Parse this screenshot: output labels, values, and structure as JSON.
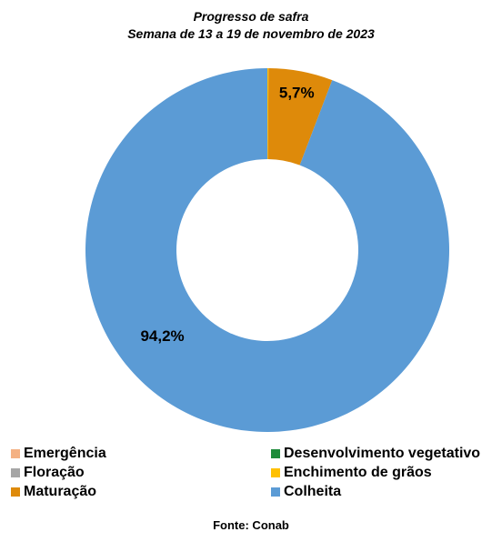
{
  "chart_data": {
    "type": "pie",
    "style": "donut",
    "title": "Progresso de safra",
    "subtitle": "Semana de 13 a 19 de novembro de 2023",
    "legend_position": "bottom",
    "series": [
      {
        "name": "Emergência",
        "value": 0.0,
        "color": "#f4b183",
        "label": ""
      },
      {
        "name": "Desenvolvimento vegetativo",
        "value": 0.0,
        "color": "#1e8b3a",
        "label": ""
      },
      {
        "name": "Floração",
        "value": 0.0,
        "color": "#a6a6a6",
        "label": ""
      },
      {
        "name": "Enchimento de grãos",
        "value": 0.1,
        "color": "#ffc000",
        "label": ""
      },
      {
        "name": "Maturação",
        "value": 5.7,
        "color": "#de8a0a",
        "label": "5,7%"
      },
      {
        "name": "Colheita",
        "value": 94.2,
        "color": "#5b9bd5",
        "label": "94,2%"
      }
    ]
  },
  "source": "Fonte: Conab"
}
